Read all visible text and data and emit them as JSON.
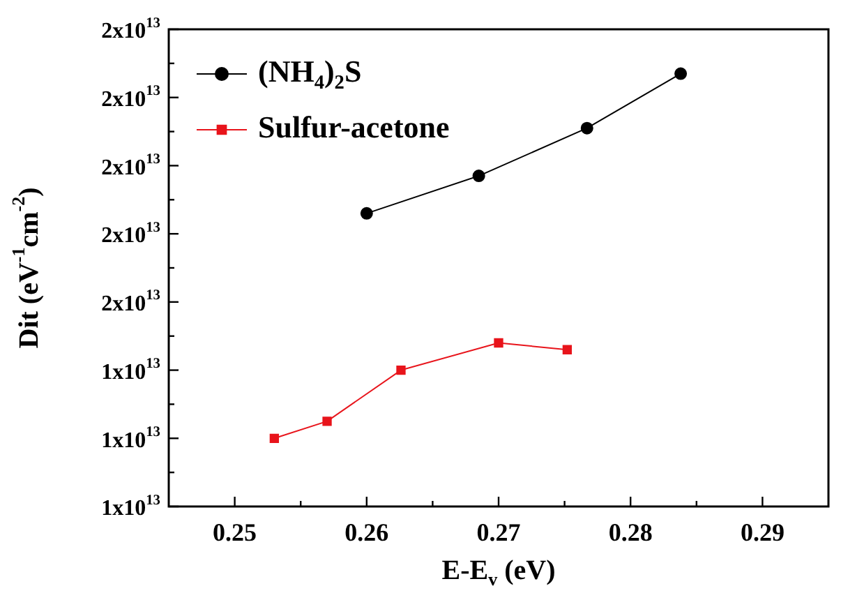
{
  "chart_data": {
    "type": "line",
    "xlabel": "E-E$_{v}$ (eV)",
    "ylabel": "Dit (eV$^{-1}$cm$^{-2}$)",
    "legend": "top left",
    "xlim": [
      0.245,
      0.295
    ],
    "xticks": [
      0.25,
      {
        "value": 0.255,
        "label": null
      },
      0.26,
      {
        "value": 0.265,
        "label": null
      },
      0.27,
      {
        "value": 0.275,
        "label": null
      },
      0.28,
      {
        "value": 0.285,
        "label": null
      },
      0.29
    ],
    "ylim": [
      10000000000000.0,
      24000000000000.0
    ],
    "yticks": [
      {
        "value": 10000000000000.0,
        "label": "1x10$^{13}$"
      },
      {
        "value": 11000000000000.0,
        "label": null
      },
      {
        "value": 12000000000000.0,
        "label": "1x10$^{13}$"
      },
      {
        "value": 13000000000000.0,
        "label": null
      },
      {
        "value": 14000000000000.0,
        "label": "1x10$^{13}$"
      },
      {
        "value": 15000000000000.0,
        "label": null
      },
      {
        "value": 16000000000000.0,
        "label": "2x10$^{13}$"
      },
      {
        "value": 17000000000000.0,
        "label": null
      },
      {
        "value": 18000000000000.0,
        "label": "2x10$^{13}$"
      },
      {
        "value": 19000000000000.0,
        "label": null
      },
      {
        "value": 20000000000000.0,
        "label": "2x10$^{13}$"
      },
      {
        "value": 21000000000000.0,
        "label": null
      },
      {
        "value": 22000000000000.0,
        "label": "2x10$^{13}$"
      },
      {
        "value": 23000000000000.0,
        "label": null
      },
      {
        "value": 24000000000000.0,
        "label": "2x10$^{13}$"
      }
    ],
    "series": [
      {
        "name": "(NH$_{4}$)$_{2}$S",
        "color": "#000000",
        "marker": "circle",
        "x": [
          0.26,
          0.2685,
          0.2767,
          0.2838
        ],
        "values": [
          18600000000000.0,
          19700000000000.0,
          21100000000000.0,
          22700000000000.0
        ]
      },
      {
        "name": "Sulfur-acetone",
        "color": "#e8141b",
        "marker": "square",
        "x": [
          0.253,
          0.257,
          0.2626,
          0.27,
          0.2752
        ],
        "values": [
          12000000000000.0,
          12500000000000.0,
          14000000000000.0,
          14800000000000.0,
          14600000000000.0
        ]
      }
    ]
  }
}
